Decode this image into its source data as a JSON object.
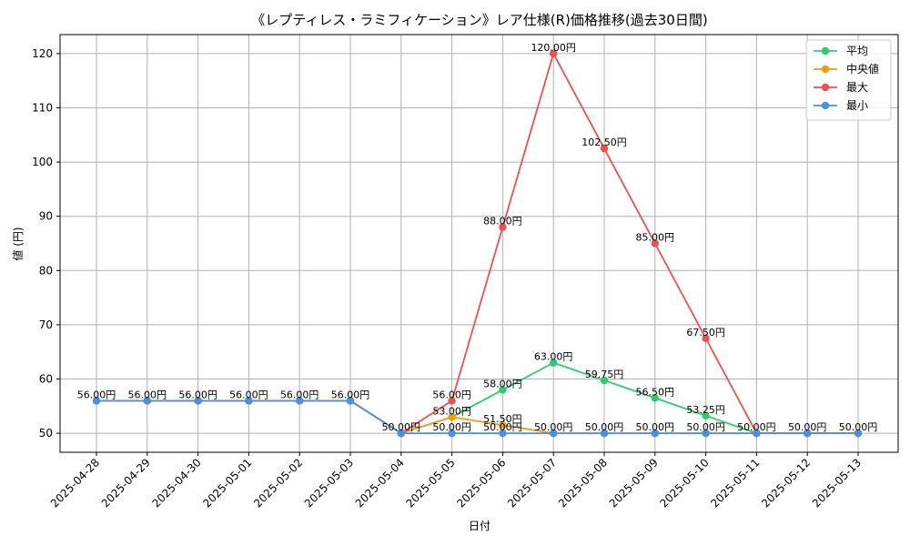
{
  "chart_data": {
    "type": "line",
    "title": "《レプティレス・ラミフィケーション》レア仕様(R)価格推移(過去30日間)",
    "xlabel": "日付",
    "ylabel": "値 (円)",
    "ylim": [
      46.5,
      123.5
    ],
    "yticks": [
      50,
      60,
      70,
      80,
      90,
      100,
      110,
      120
    ],
    "grid": true,
    "legend_position": "top-right",
    "categories": [
      "2025-04-28",
      "2025-04-29",
      "2025-04-30",
      "2025-05-01",
      "2025-05-02",
      "2025-05-03",
      "2025-05-04",
      "2025-05-05",
      "2025-05-06",
      "2025-05-07",
      "2025-05-08",
      "2025-05-09",
      "2025-05-10",
      "2025-05-11",
      "2025-05-12",
      "2025-05-13"
    ],
    "series": [
      {
        "name": "平均",
        "color": "#2ecc71",
        "values": [
          56,
          56,
          56,
          56,
          56,
          56,
          50,
          53,
          58,
          63,
          59.75,
          56.5,
          53.25,
          50,
          50,
          50
        ]
      },
      {
        "name": "中央値",
        "color": "#f39c12",
        "values": [
          56,
          56,
          56,
          56,
          56,
          56,
          50,
          53,
          51.5,
          50,
          50,
          50,
          50,
          50,
          50,
          50
        ]
      },
      {
        "name": "最大",
        "color": "#ef4f4f",
        "values": [
          56,
          56,
          56,
          56,
          56,
          56,
          50,
          56,
          88,
          120,
          102.5,
          85,
          67.5,
          50,
          50,
          50
        ]
      },
      {
        "name": "最小",
        "color": "#4a90e2",
        "values": [
          56,
          56,
          56,
          56,
          56,
          56,
          50,
          50,
          50,
          50,
          50,
          50,
          50,
          50,
          50,
          50
        ]
      }
    ],
    "data_labels": [
      {
        "x": 0,
        "text": "56.00円"
      },
      {
        "x": 1,
        "text": "56.00円"
      },
      {
        "x": 2,
        "text": "56.00円"
      },
      {
        "x": 3,
        "text": "56.00円"
      },
      {
        "x": 4,
        "text": "56.00円"
      },
      {
        "x": 5,
        "text": "56.00円"
      },
      {
        "x": 6,
        "text": "50.00円"
      },
      {
        "x": 7,
        "text": "56.00円",
        "y": 56
      },
      {
        "x": 7,
        "text": "53.00円",
        "y": 53
      },
      {
        "x": 7,
        "text": "50.00円",
        "y": 50
      },
      {
        "x": 8,
        "text": "88.00円",
        "y": 88
      },
      {
        "x": 8,
        "text": "58.00円",
        "y": 58
      },
      {
        "x": 8,
        "text": "51.50円",
        "y": 51.5
      },
      {
        "x": 8,
        "text": "50.00円",
        "y": 50
      },
      {
        "x": 9,
        "text": "120.00円",
        "y": 120
      },
      {
        "x": 9,
        "text": "63.00円",
        "y": 63
      },
      {
        "x": 9,
        "text": "50.00円",
        "y": 50
      },
      {
        "x": 10,
        "text": "102.50円",
        "y": 102.5
      },
      {
        "x": 10,
        "text": "59.75円",
        "y": 59.75
      },
      {
        "x": 10,
        "text": "50.00円",
        "y": 50
      },
      {
        "x": 11,
        "text": "85.00円",
        "y": 85
      },
      {
        "x": 11,
        "text": "56.50円",
        "y": 56.5
      },
      {
        "x": 11,
        "text": "50.00円",
        "y": 50
      },
      {
        "x": 12,
        "text": "67.50円",
        "y": 67.5
      },
      {
        "x": 12,
        "text": "53.25円",
        "y": 53.25
      },
      {
        "x": 12,
        "text": "50.00円",
        "y": 50
      },
      {
        "x": 13,
        "text": "50.00円",
        "y": 50
      },
      {
        "x": 14,
        "text": "50.00円",
        "y": 50
      },
      {
        "x": 15,
        "text": "50.00円",
        "y": 50
      }
    ]
  }
}
